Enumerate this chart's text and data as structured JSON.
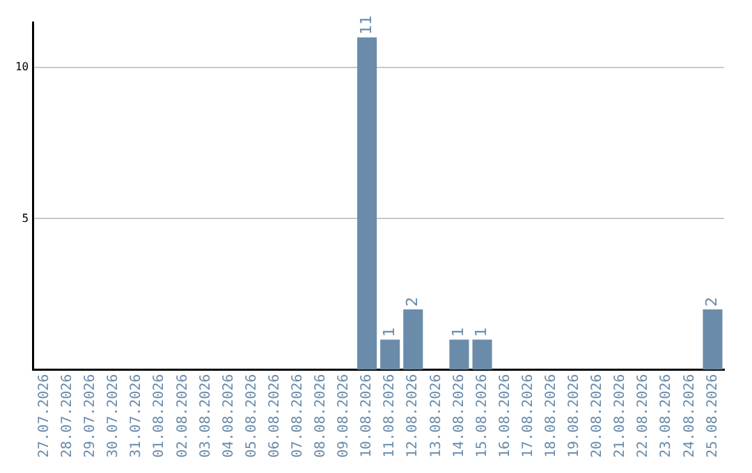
{
  "chart_data": {
    "type": "bar",
    "categories": [
      "27.07.2026",
      "28.07.2026",
      "29.07.2026",
      "30.07.2026",
      "31.07.2026",
      "01.08.2026",
      "02.08.2026",
      "03.08.2026",
      "04.08.2026",
      "05.08.2026",
      "06.08.2026",
      "07.08.2026",
      "08.08.2026",
      "09.08.2026",
      "10.08.2026",
      "11.08.2026",
      "12.08.2026",
      "13.08.2026",
      "14.08.2026",
      "15.08.2026",
      "16.08.2026",
      "17.08.2026",
      "18.08.2026",
      "19.08.2026",
      "20.08.2026",
      "21.08.2026",
      "22.08.2026",
      "23.08.2026",
      "24.08.2026",
      "25.08.2026"
    ],
    "values": [
      0,
      0,
      0,
      0,
      0,
      0,
      0,
      0,
      0,
      0,
      0,
      0,
      0,
      0,
      11,
      1,
      2,
      0,
      1,
      1,
      0,
      0,
      0,
      0,
      0,
      0,
      0,
      0,
      0,
      2
    ],
    "value_labels": [
      null,
      null,
      null,
      null,
      null,
      null,
      null,
      null,
      null,
      null,
      null,
      null,
      null,
      null,
      "11",
      "1",
      "2",
      null,
      "1",
      "1",
      null,
      null,
      null,
      null,
      null,
      null,
      null,
      null,
      null,
      "2"
    ],
    "color": "#6a8caa",
    "ylim": [
      0,
      11.5
    ],
    "yticks": [
      5,
      10
    ],
    "grid": "y",
    "legend": false
  }
}
